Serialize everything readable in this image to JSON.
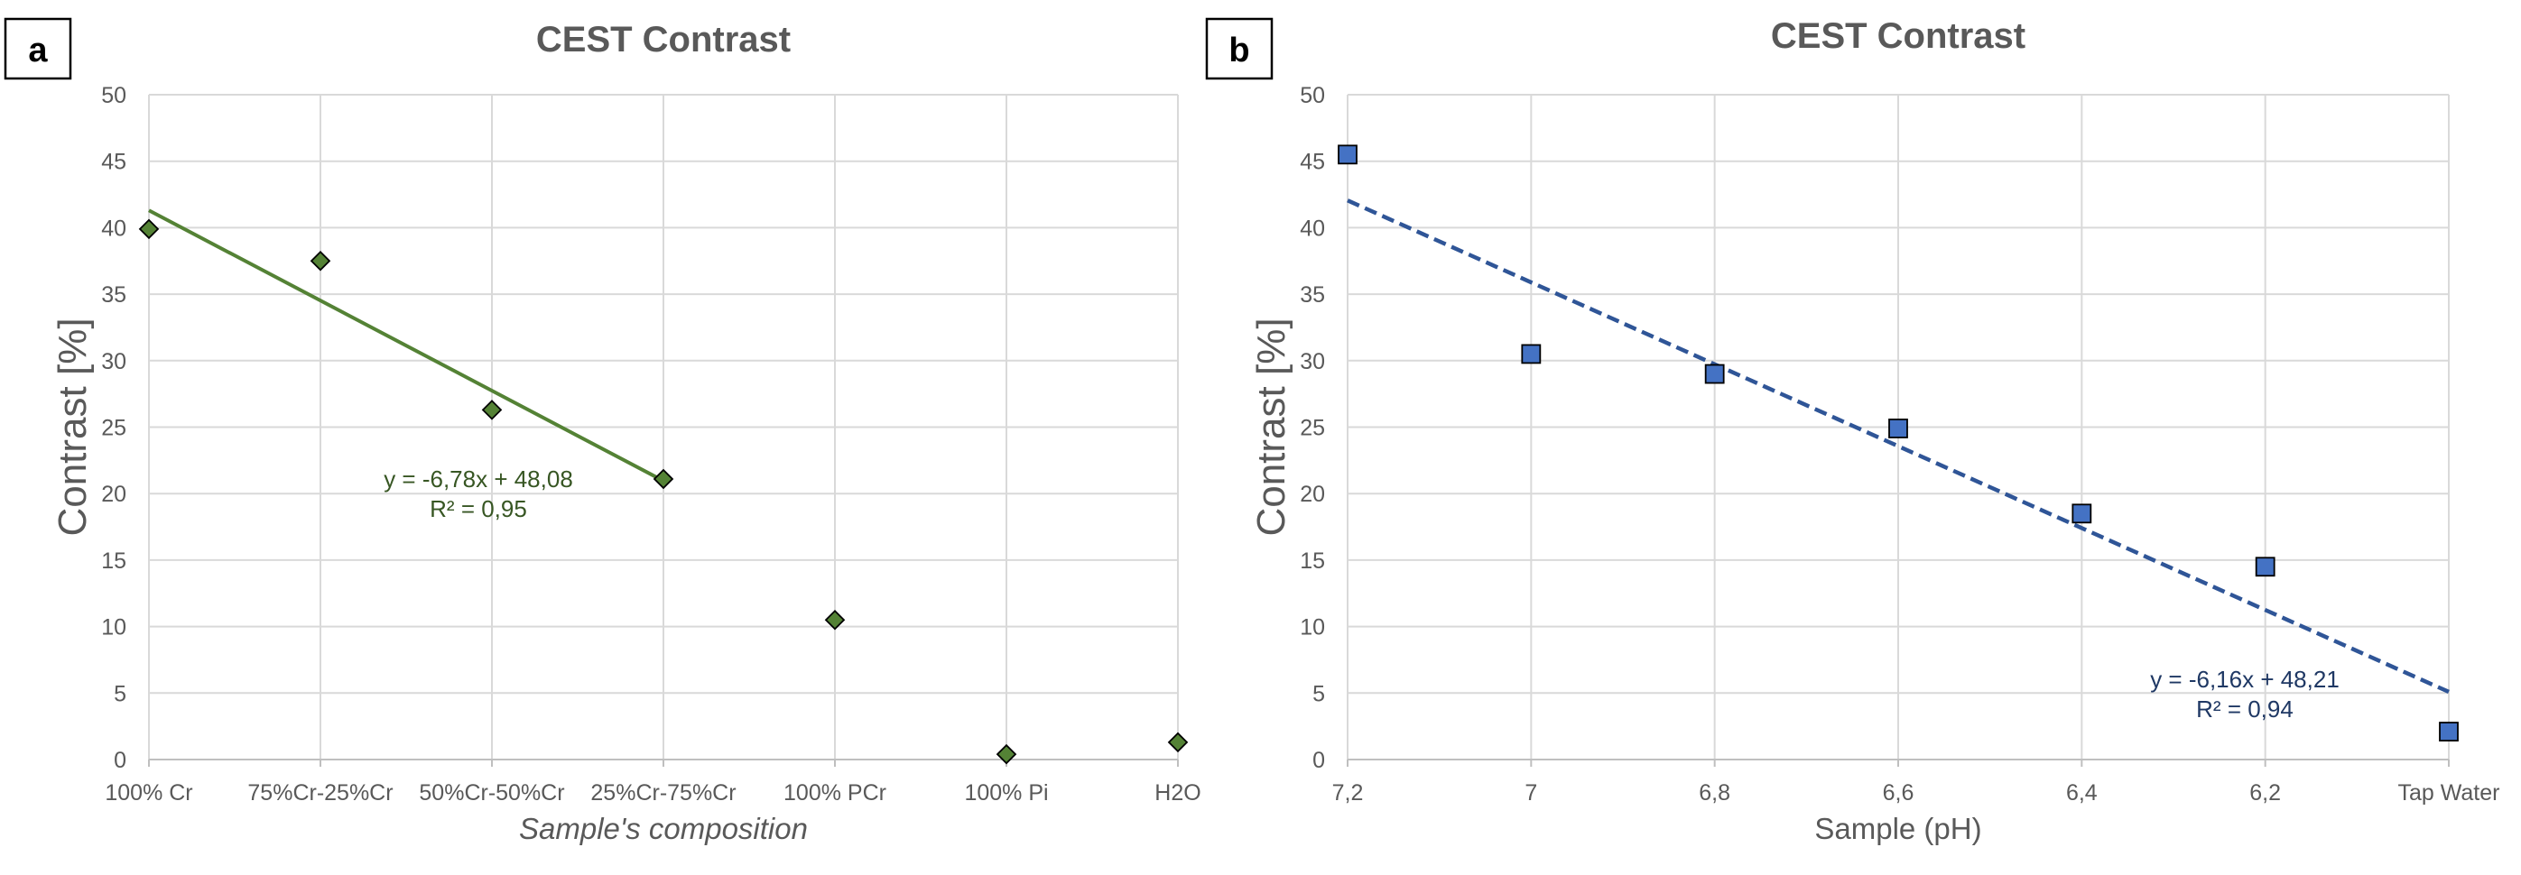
{
  "chart_data": [
    {
      "type": "scatter",
      "panel_label": "a",
      "title": "CEST Contrast",
      "xlabel": "Sample's composition",
      "ylabel": "Contrast [%]",
      "categories": [
        "100% Cr",
        "75%Cr-25%Cr",
        "50%Cr-50%Cr",
        "25%Cr-75%Cr",
        "100% PCr",
        "100% Pi",
        "H2O"
      ],
      "series": [
        {
          "name": "Contrast",
          "values": [
            39.9,
            37.5,
            26.3,
            21.1,
            10.5,
            0.4,
            1.3
          ],
          "marker": "diamond",
          "color": "#548235"
        }
      ],
      "trendline": {
        "type": "linear",
        "from_index": 0,
        "to_index": 3,
        "slope": -6.78,
        "intercept": 48.08,
        "style": "solid",
        "color": "#548235",
        "equation": "y = -6,78x + 48,08",
        "r2": "R² = 0,95"
      },
      "ylim": [
        0,
        50
      ],
      "yticks": [
        0,
        5,
        10,
        15,
        20,
        25,
        30,
        35,
        40,
        45,
        50
      ],
      "grid": true
    },
    {
      "type": "scatter",
      "panel_label": "b",
      "title": "CEST Contrast",
      "xlabel": "Sample (pH)",
      "ylabel": "Contrast [%]",
      "categories": [
        "7,2",
        "7",
        "6,8",
        "6,6",
        "6,4",
        "6,2",
        "Tap Water"
      ],
      "series": [
        {
          "name": "Contrast",
          "values": [
            45.5,
            30.5,
            29.0,
            24.9,
            18.5,
            14.5,
            2.1
          ],
          "marker": "square",
          "color": "#4472c4"
        }
      ],
      "trendline": {
        "type": "linear",
        "from_index": 0,
        "to_index": 6,
        "slope": -6.16,
        "intercept": 48.21,
        "style": "dashed",
        "color": "#2f5597",
        "equation": "y = -6,16x + 48,21",
        "r2": "R² = 0,94"
      },
      "ylim": [
        0,
        50
      ],
      "yticks": [
        0,
        5,
        10,
        15,
        20,
        25,
        30,
        35,
        40,
        45,
        50
      ],
      "grid": true
    }
  ]
}
